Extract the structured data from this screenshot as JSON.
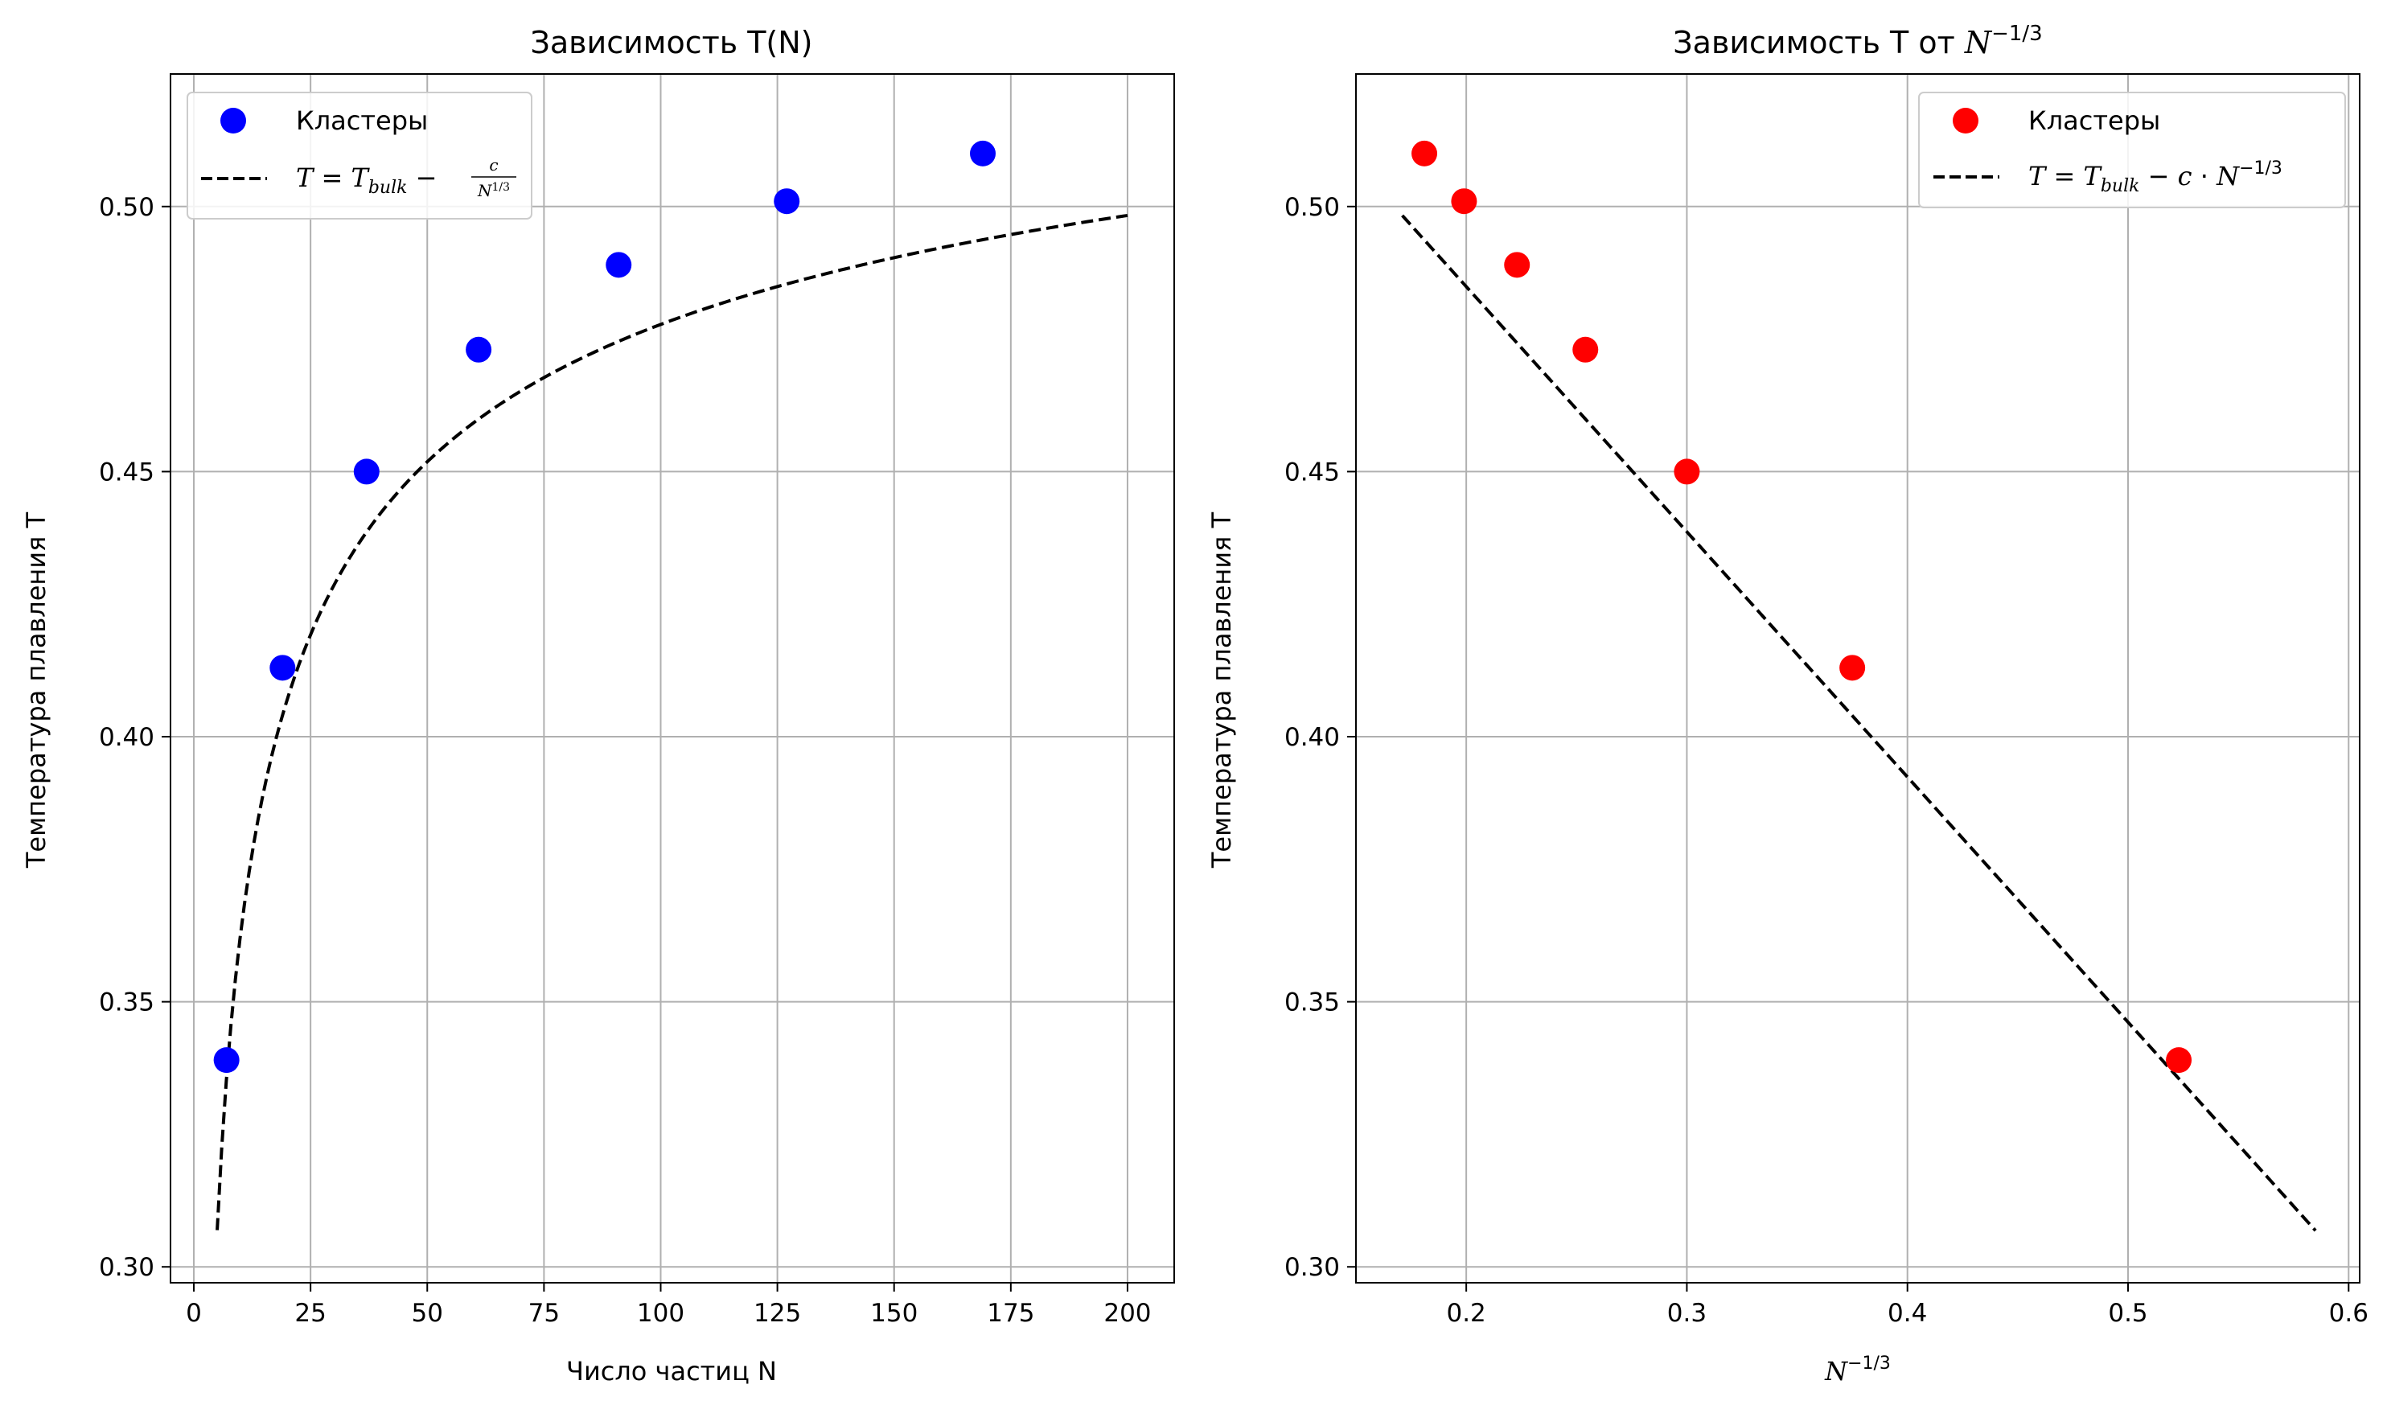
{
  "chart_data": [
    {
      "type": "scatter",
      "title": "Зависимость T(N)",
      "xlabel": "Число частиц N",
      "ylabel": "Температура плавления T",
      "xlim": [
        -5,
        210
      ],
      "ylim": [
        0.297,
        0.525
      ],
      "xticks": [
        0,
        25,
        50,
        75,
        100,
        125,
        150,
        175,
        200
      ],
      "xtick_labels": [
        "0",
        "25",
        "50",
        "75",
        "100",
        "125",
        "150",
        "175",
        "200"
      ],
      "yticks": [
        0.3,
        0.35,
        0.4,
        0.45,
        0.5
      ],
      "ytick_labels": [
        "0.30",
        "0.35",
        "0.40",
        "0.45",
        "0.50"
      ],
      "grid": true,
      "legend_position": "top-left",
      "series": [
        {
          "name": "Кластеры",
          "kind": "scatter",
          "color": "#0000ff",
          "x": [
            7,
            19,
            37,
            61,
            91,
            127,
            169
          ],
          "y": [
            0.339,
            0.413,
            0.45,
            0.473,
            0.489,
            0.501,
            0.51
          ]
        },
        {
          "name": "T = T_bulk − c / N^1/3",
          "kind": "line",
          "style": "dashed",
          "color": "#000000",
          "function": "T = T_bulk - c * N^(-1/3)",
          "x_range": [
            5,
            200
          ],
          "params": {
            "T_bulk": 0.5774,
            "c": 0.4625
          }
        }
      ]
    },
    {
      "type": "scatter",
      "title": "Зависимость T от N^−1/3",
      "xlabel": "N^−1/3",
      "ylabel": "Температура плавления T",
      "xlim": [
        0.15,
        0.605
      ],
      "ylim": [
        0.297,
        0.525
      ],
      "xticks": [
        0.2,
        0.3,
        0.4,
        0.5,
        0.6
      ],
      "xtick_labels": [
        "0.2",
        "0.3",
        "0.4",
        "0.5",
        "0.6"
      ],
      "yticks": [
        0.3,
        0.35,
        0.4,
        0.45,
        0.5
      ],
      "ytick_labels": [
        "0.30",
        "0.35",
        "0.40",
        "0.45",
        "0.50"
      ],
      "grid": true,
      "legend_position": "top-right",
      "series": [
        {
          "name": "Кластеры",
          "kind": "scatter",
          "color": "#ff0000",
          "x": [
            0.181,
            0.199,
            0.223,
            0.254,
            0.3,
            0.375,
            0.523
          ],
          "y": [
            0.51,
            0.501,
            0.489,
            0.473,
            0.45,
            0.413,
            0.339
          ]
        },
        {
          "name": "T = T_bulk − c · N^−1/3",
          "kind": "line",
          "style": "dashed",
          "color": "#000000",
          "function": "T = T_bulk - c * x",
          "x_range": [
            0.171,
            0.585
          ],
          "params": {
            "T_bulk": 0.5774,
            "c": 0.4625
          }
        }
      ]
    }
  ]
}
